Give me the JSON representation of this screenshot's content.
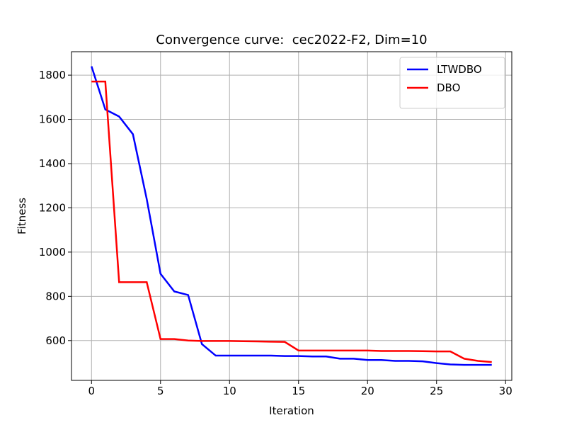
{
  "chart_data": {
    "type": "line",
    "title": "Convergence curve:  cec2022-F2, Dim=10",
    "xlabel": "Iteration",
    "ylabel": "Fitness",
    "x": [
      0,
      1,
      2,
      3,
      4,
      5,
      6,
      7,
      8,
      9,
      10,
      11,
      12,
      13,
      14,
      15,
      16,
      17,
      18,
      19,
      20,
      21,
      22,
      23,
      24,
      25,
      26,
      27,
      28,
      29
    ],
    "series": [
      {
        "name": "LTWDBO",
        "color": "#0000ff",
        "values": [
          1840,
          1645,
          1613,
          1533,
          1240,
          902,
          822,
          806,
          584,
          532,
          532,
          532,
          532,
          532,
          530,
          530,
          528,
          528,
          518,
          518,
          512,
          512,
          508,
          508,
          506,
          498,
          492,
          490,
          490,
          490
        ]
      },
      {
        "name": "DBO",
        "color": "#ff0000",
        "values": [
          1771,
          1771,
          864,
          864,
          864,
          607,
          607,
          600,
          598,
          598,
          598,
          597,
          596,
          595,
          594,
          555,
          555,
          555,
          555,
          555,
          555,
          553,
          553,
          553,
          552,
          551,
          551,
          518,
          508,
          503
        ]
      }
    ],
    "xlim": [
      -1.45,
      30.45
    ],
    "xticks": [
      0,
      5,
      10,
      15,
      20,
      25,
      30
    ],
    "ylim": [
      420,
      1906
    ],
    "yticks": [
      600,
      800,
      1000,
      1200,
      1400,
      1600,
      1800
    ],
    "grid": true,
    "legend": "upper right"
  }
}
